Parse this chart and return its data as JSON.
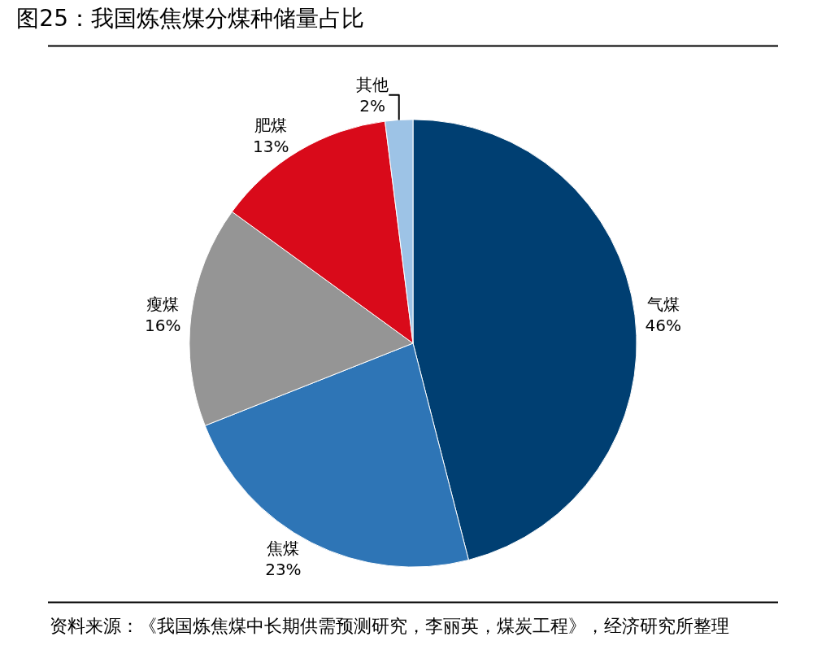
{
  "chart_data": {
    "type": "pie",
    "title": "图25：我国炼焦煤分煤种储量占比",
    "categories": [
      "气煤",
      "焦煤",
      "瘦煤",
      "肥煤",
      "其他"
    ],
    "values": [
      46,
      23,
      16,
      13,
      2
    ],
    "value_labels": [
      "46%",
      "23%",
      "16%",
      "13%",
      "2%"
    ],
    "colors": [
      "#003f72",
      "#2e75b6",
      "#959595",
      "#d90a1a",
      "#9dc3e6"
    ],
    "legend": false,
    "annotations": [
      "资料来源：《我国炼焦煤中长期供需预测研究，李丽英，煤炭工程》，经济研究所整理"
    ]
  }
}
